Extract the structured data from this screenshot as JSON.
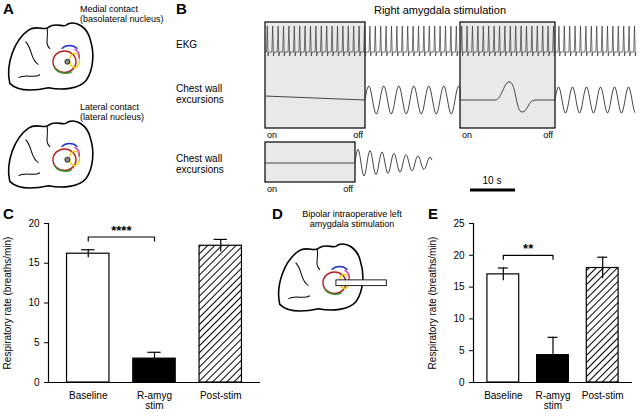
{
  "figure": {
    "panels": {
      "A": {
        "letter": "A",
        "labels": [
          "Medial contact (basolateral nucleus)",
          "Lateral contact (lateral nucleus)"
        ]
      },
      "B": {
        "letter": "B",
        "title": "Right amygdala stimulation",
        "trace_labels": [
          "EKG",
          "Chest wall excursions",
          "Chest wall excursions"
        ],
        "stim_on": "on",
        "stim_off": "off",
        "scale_bar": "10 s"
      },
      "D": {
        "letter": "D",
        "title": "Bipolar intraoperative left amygdala stimulation"
      }
    }
  },
  "chart_data": [
    {
      "type": "bar",
      "panel_label": "C",
      "categories": [
        "Baseline",
        "R-amyg stim",
        "Post-stim"
      ],
      "values": [
        16.2,
        3.0,
        17.2
      ],
      "errors": [
        0.5,
        0.8,
        0.8
      ],
      "colors": [
        "#ffffff",
        "#000000",
        "#ffffff"
      ],
      "y_label": "Respiratory rate (breaths/min)",
      "ylim": [
        0,
        20
      ],
      "yticks": [
        0,
        5,
        10,
        15,
        20
      ],
      "significance": {
        "text": "****",
        "categories": [
          "Baseline",
          "R-amyg stim"
        ]
      }
    },
    {
      "type": "bar",
      "panel_label": "E",
      "categories": [
        "Baseline",
        "R-amyg stim",
        "Post-stim"
      ],
      "values": [
        17.0,
        4.3,
        18.0
      ],
      "errors": [
        1.0,
        2.8,
        1.7
      ],
      "colors": [
        "#ffffff",
        "#000000",
        "#ffffff"
      ],
      "y_label": "Respiratory rate (breaths/min)",
      "ylim": [
        0,
        25
      ],
      "yticks": [
        0,
        5,
        10,
        15,
        20,
        25
      ],
      "significance": {
        "text": "**",
        "categories": [
          "Baseline",
          "R-amyg stim"
        ]
      }
    }
  ]
}
